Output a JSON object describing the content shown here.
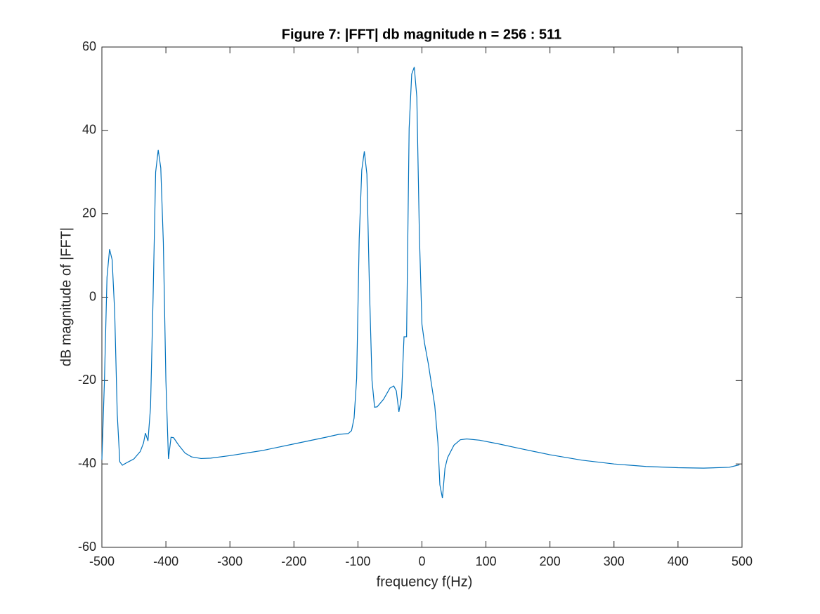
{
  "chart_data": {
    "type": "line",
    "title": "Figure 7: |FFT| db magnitude n = 256 : 511",
    "x_label": "frequency f(Hz)",
    "y_label": "dB magnitude of |FFT|",
    "xlim": [
      -500,
      500
    ],
    "ylim": [
      -60,
      60
    ],
    "xticks": [
      -500,
      -400,
      -300,
      -200,
      -100,
      0,
      100,
      200,
      300,
      400,
      500
    ],
    "yticks": [
      -60,
      -40,
      -20,
      0,
      20,
      40,
      60
    ],
    "grid": false,
    "series": [
      {
        "name": "|FFT| dB",
        "color": "#0072bd",
        "x": [
          -500,
          -496,
          -492,
          -488,
          -484,
          -480,
          -476,
          -472,
          -468,
          -460,
          -450,
          -440,
          -435,
          -432,
          -428,
          -424,
          -420,
          -416,
          -412,
          -408,
          -404,
          -400,
          -396,
          -392,
          -388,
          -380,
          -370,
          -360,
          -345,
          -330,
          -300,
          -250,
          -200,
          -150,
          -130,
          -115,
          -110,
          -106,
          -102,
          -98,
          -94,
          -90,
          -86,
          -82,
          -78,
          -74,
          -70,
          -60,
          -50,
          -44,
          -40,
          -36,
          -32,
          -28,
          -24,
          -20,
          -16,
          -12,
          -8,
          -4,
          0,
          4,
          10,
          20,
          25,
          28,
          32,
          36,
          40,
          50,
          60,
          70,
          90,
          120,
          150,
          200,
          250,
          300,
          350,
          400,
          440,
          480,
          496
        ],
        "values": [
          -39,
          -20,
          4.8,
          11.5,
          9,
          -3.6,
          -28,
          -39.5,
          -40.3,
          -39.6,
          -38.8,
          -37,
          -35,
          -32.6,
          -34.5,
          -26.4,
          0,
          30,
          35.3,
          31,
          13.2,
          -20,
          -38.8,
          -33.6,
          -33.7,
          -35.5,
          -37.4,
          -38.3,
          -38.7,
          -38.6,
          -38,
          -36.8,
          -35.2,
          -33.6,
          -32.9,
          -32.7,
          -32,
          -29,
          -19.5,
          14,
          30.5,
          35,
          29.5,
          2,
          -20,
          -26.4,
          -26.3,
          -24.5,
          -21.8,
          -21.3,
          -22.5,
          -27.5,
          -24,
          -9.5,
          -9.5,
          40.5,
          53.5,
          55.2,
          48,
          15,
          -6.5,
          -11,
          -16,
          -26,
          -35,
          -45,
          -48.2,
          -41,
          -38.5,
          -35.5,
          -34.2,
          -34,
          -34.3,
          -35.2,
          -36.2,
          -37.8,
          -39.1,
          -40,
          -40.6,
          -40.9,
          -41,
          -40.8,
          -40.2
        ]
      }
    ]
  }
}
